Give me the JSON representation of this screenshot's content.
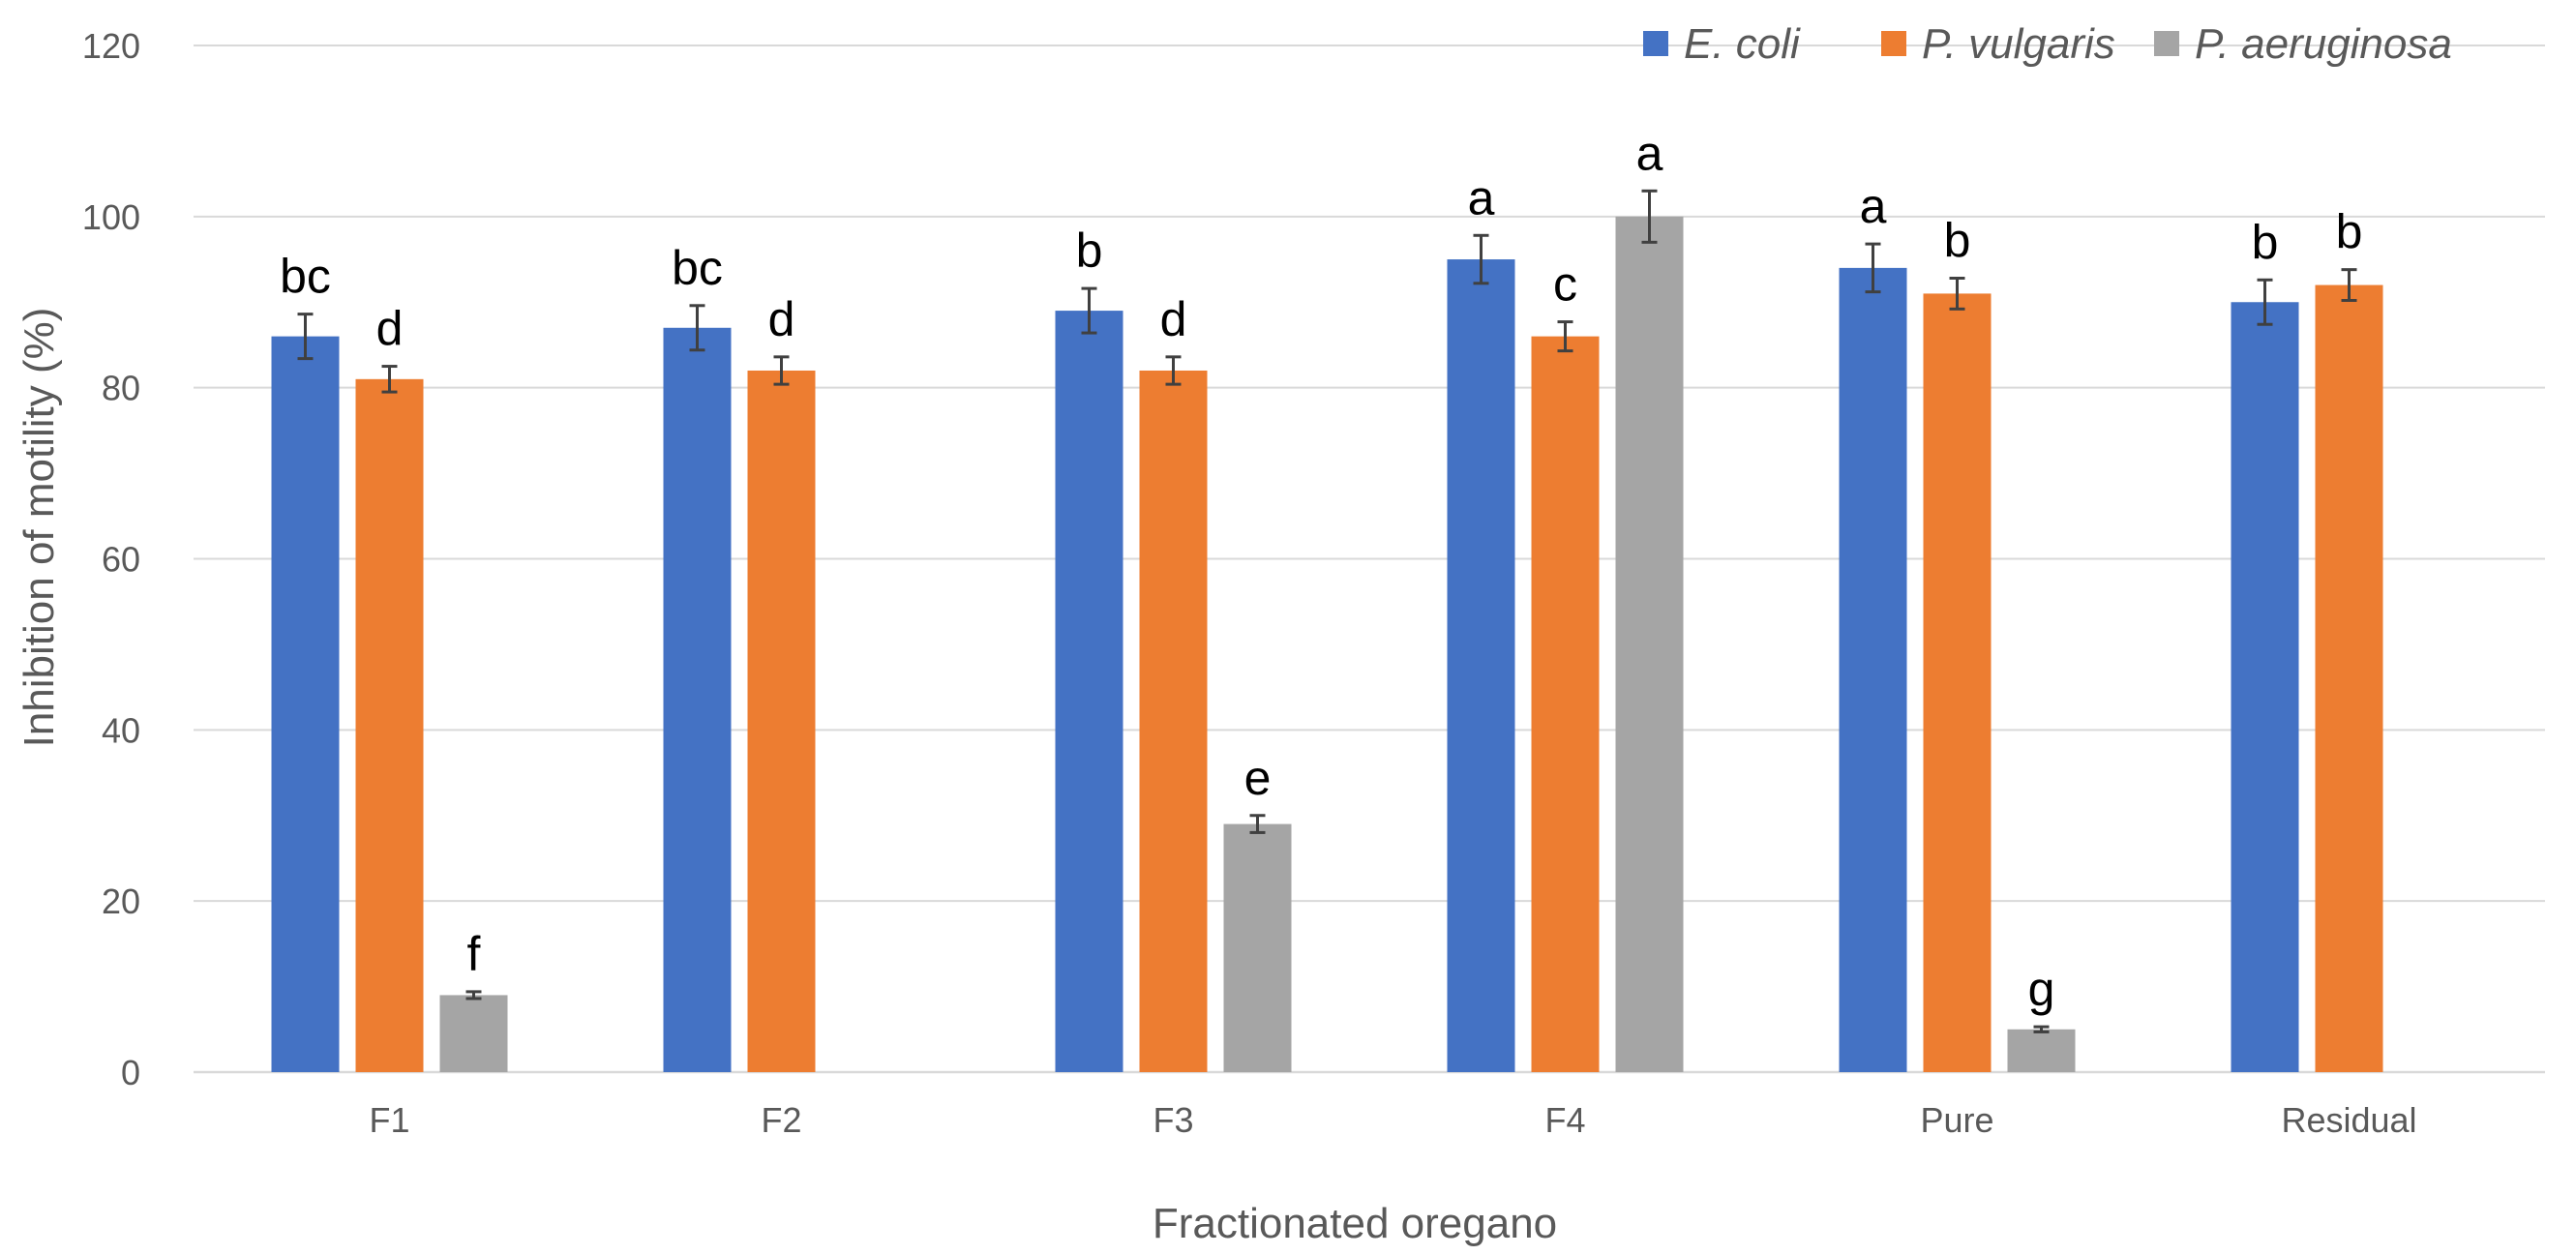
{
  "chart_data": {
    "type": "bar",
    "title": "",
    "xlabel": "Fractionated oregano",
    "ylabel": "Inhibition of motility (%)",
    "ylim": [
      0,
      120
    ],
    "yticks": [
      0,
      20,
      40,
      60,
      80,
      100,
      120
    ],
    "grid": true,
    "legend_position": "top-right",
    "categories": [
      "F1",
      "F2",
      "F3",
      "F4",
      "Pure",
      "Residual"
    ],
    "series": [
      {
        "name": "E. coli",
        "color": "#4472c4",
        "values": [
          86,
          87,
          89,
          95,
          94,
          90
        ],
        "errors": [
          2.6,
          2.6,
          2.6,
          2.8,
          2.8,
          2.6
        ],
        "labels": [
          "bc",
          "bc",
          "b",
          "a",
          "a",
          "b"
        ]
      },
      {
        "name": "P. vulgaris",
        "color": "#ed7d31",
        "values": [
          81,
          82,
          82,
          86,
          91,
          92
        ],
        "errors": [
          1.5,
          1.6,
          1.6,
          1.7,
          1.8,
          1.8
        ],
        "labels": [
          "d",
          "d",
          "d",
          "c",
          "b",
          "b"
        ]
      },
      {
        "name": "P. aeruginosa",
        "color": "#a5a5a5",
        "values": [
          9,
          null,
          29,
          100,
          5,
          null
        ],
        "errors": [
          0.4,
          null,
          1.0,
          3.0,
          0.3,
          null
        ],
        "labels": [
          "f",
          "",
          "e",
          "a",
          "g",
          ""
        ]
      }
    ]
  }
}
